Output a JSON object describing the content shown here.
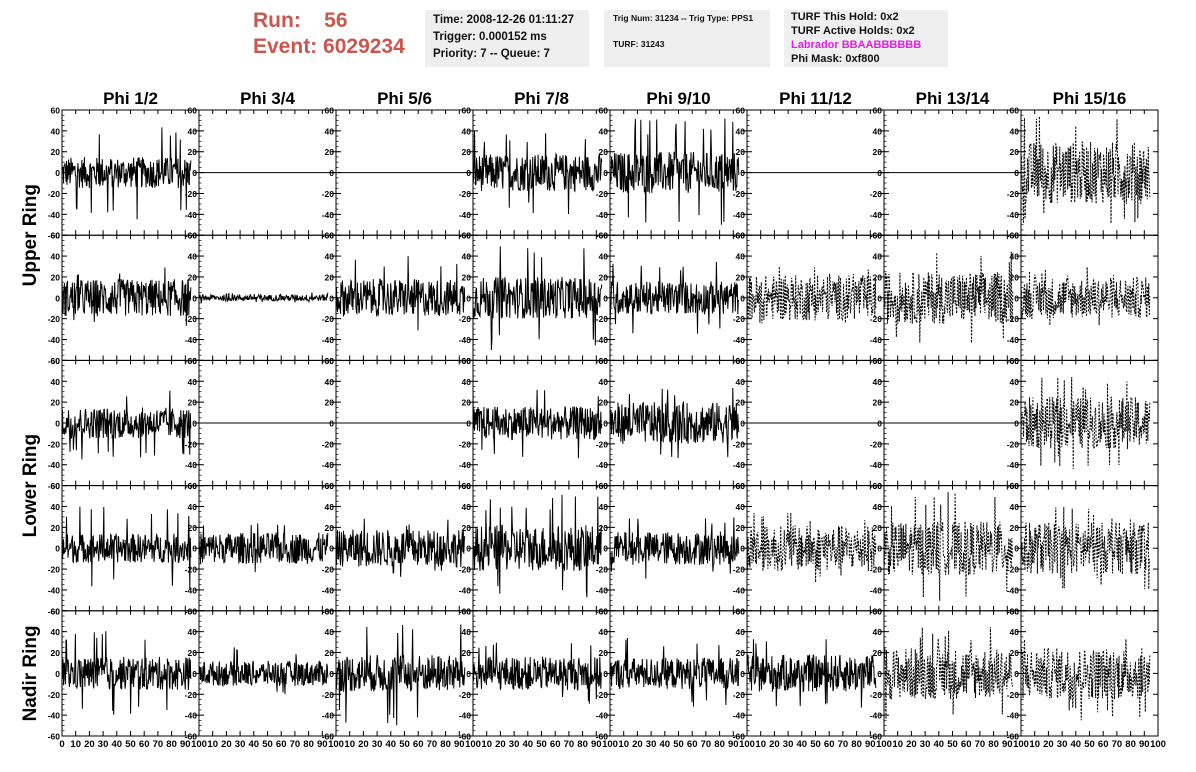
{
  "header": {
    "run_label": "Run:",
    "run_value": "56",
    "event_label": "Event:",
    "event_value": "6029234"
  },
  "info_box_1": {
    "time": "Time: 2008-12-26 01:11:27",
    "trigger": "Trigger: 0.000152 ms",
    "priority": "Priority: 7 -- Queue: 7"
  },
  "info_box_2": {
    "trig_line": "Trig Num: 31234 -- Trig Type: PPS1",
    "turf_line": "TURF: 31243"
  },
  "info_box_3": {
    "this_hold": "TURF This Hold: 0x2",
    "active_holds": "TURF Active Holds: 0x2",
    "labrador": "Labrador BBAABBBBBB",
    "phi_mask": "Phi Mask: 0xf800",
    "labrador_color": "#e020e0"
  },
  "colors": {
    "run_text": "#c8584e",
    "info_bg": "#efefef",
    "trace": "#000000"
  },
  "chart_data": {
    "type": "line",
    "columns": [
      "Phi 1/2",
      "Phi 3/4",
      "Phi 5/6",
      "Phi 7/8",
      "Phi 9/10",
      "Phi 11/12",
      "Phi 13/14",
      "Phi 15/16"
    ],
    "ring_labels": [
      "Upper Ring",
      "Lower Ring",
      "Nadir Ring"
    ],
    "rows": 5,
    "row_ring_groups": [
      [
        0,
        1
      ],
      [
        2,
        3
      ],
      [
        4
      ]
    ],
    "xlim": [
      0,
      100
    ],
    "ylim": [
      -60,
      60
    ],
    "x_tick_labels": [
      "0",
      "10",
      "20",
      "30",
      "40",
      "50",
      "60",
      "70",
      "80",
      "90",
      "100"
    ],
    "y_tick_labels": [
      "60",
      "40",
      "20",
      "0",
      "-20",
      "-40",
      "-60"
    ],
    "x_data_range": [
      0,
      94
    ],
    "panels": [
      [
        {
          "style": "solid",
          "amplitude": 15,
          "spike": 45
        },
        {
          "style": "flat"
        },
        {
          "style": "flat"
        },
        {
          "style": "solid",
          "amplitude": 18,
          "spike": 40
        },
        {
          "style": "solid",
          "amplitude": 20,
          "spike": 52
        },
        {
          "style": "flat"
        },
        {
          "style": "flat"
        },
        {
          "style": "dashed",
          "amplitude": 30,
          "spike": 55
        }
      ],
      [
        {
          "style": "solid",
          "amplitude": 18,
          "spike": 30
        },
        {
          "style": "solid",
          "amplitude": 3,
          "spike": 5
        },
        {
          "style": "solid",
          "amplitude": 18,
          "spike": 40
        },
        {
          "style": "solid",
          "amplitude": 20,
          "spike": 50
        },
        {
          "style": "solid",
          "amplitude": 16,
          "spike": 35
        },
        {
          "style": "dashed",
          "amplitude": 22,
          "spike": 30
        },
        {
          "style": "dashed",
          "amplitude": 25,
          "spike": 45
        },
        {
          "style": "dashed",
          "amplitude": 20,
          "spike": 30
        }
      ],
      [
        {
          "style": "solid",
          "amplitude": 15,
          "spike": 35
        },
        {
          "style": "flat"
        },
        {
          "style": "flat"
        },
        {
          "style": "solid",
          "amplitude": 16,
          "spike": 35
        },
        {
          "style": "solid",
          "amplitude": 20,
          "spike": 35
        },
        {
          "style": "flat"
        },
        {
          "style": "flat"
        },
        {
          "style": "dashed",
          "amplitude": 25,
          "spike": 45
        }
      ],
      [
        {
          "style": "solid",
          "amplitude": 14,
          "spike": 40
        },
        {
          "style": "solid",
          "amplitude": 15,
          "spike": 25
        },
        {
          "style": "solid",
          "amplitude": 18,
          "spike": 30
        },
        {
          "style": "solid",
          "amplitude": 22,
          "spike": 52
        },
        {
          "style": "solid",
          "amplitude": 16,
          "spike": 30
        },
        {
          "style": "dashed",
          "amplitude": 22,
          "spike": 35
        },
        {
          "style": "dashed",
          "amplitude": 26,
          "spike": 55
        },
        {
          "style": "dashed",
          "amplitude": 25,
          "spike": 40
        }
      ],
      [
        {
          "style": "solid",
          "amplitude": 16,
          "spike": 45
        },
        {
          "style": "solid",
          "amplitude": 12,
          "spike": 25
        },
        {
          "style": "solid",
          "amplitude": 18,
          "spike": 50
        },
        {
          "style": "solid",
          "amplitude": 16,
          "spike": 30
        },
        {
          "style": "solid",
          "amplitude": 15,
          "spike": 35
        },
        {
          "style": "solid",
          "amplitude": 18,
          "spike": 35
        },
        {
          "style": "dashed",
          "amplitude": 25,
          "spike": 45
        },
        {
          "style": "dashed",
          "amplitude": 25,
          "spike": 45
        }
      ]
    ]
  }
}
